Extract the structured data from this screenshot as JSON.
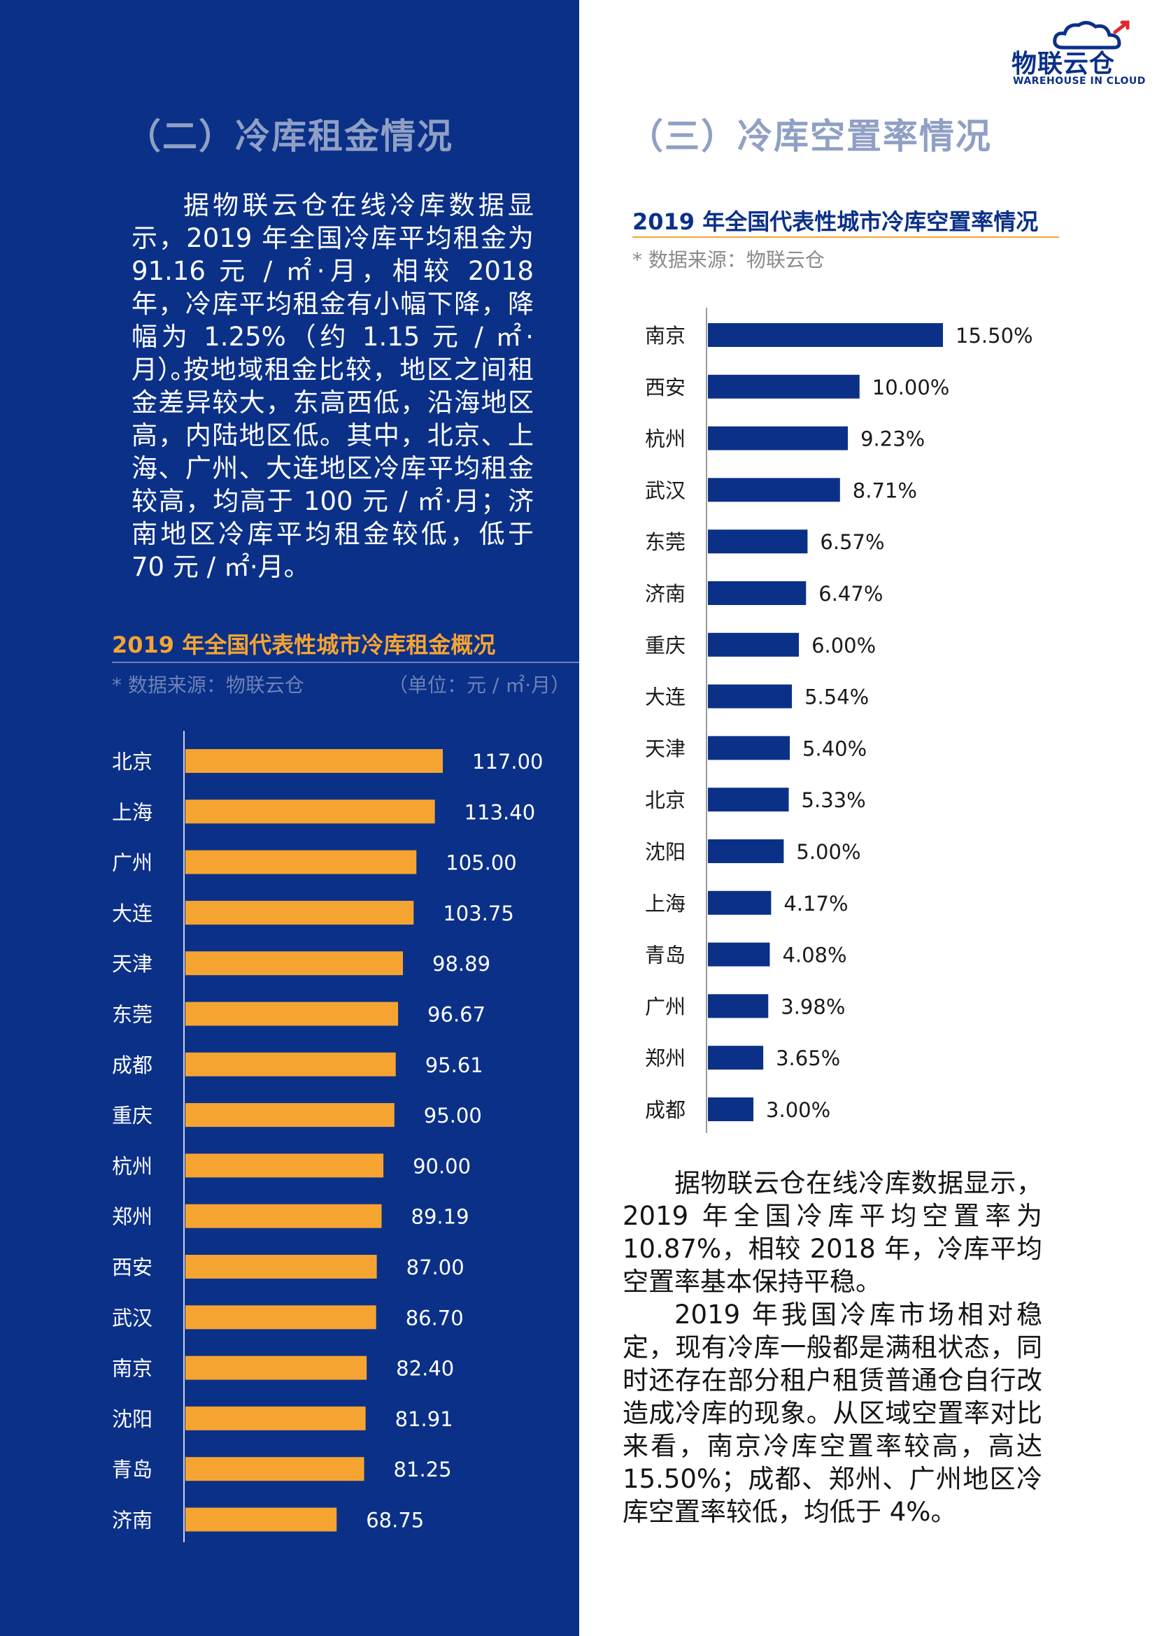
{
  "logo": {
    "name_cn": "物联云仓",
    "name_en": "WAREHOUSE IN CLOUD",
    "icon": "cloud-warehouse-logo-icon",
    "color": "#0b3088",
    "accent": "#e0282e"
  },
  "left": {
    "section_title": "（二）冷库租金情况",
    "paragraphs": [
      "据物联云仓在线冷库数据显示，2019 年全国冷库平均租金为 91.16 元 / ㎡·月，相较 2018 年，冷库平均租金有小幅下降，降幅为 1.25%（约 1.15 元 / ㎡·月）。",
      "按地域租金比较，地区之间租金差异较大，东高西低，沿海地区高，内陆地区低。其中，北京、上海、广州、大连地区冷库平均租金较高，均高于 100 元 / ㎡·月；济南地区冷库平均租金较低，低于 70 元 / ㎡·月。"
    ],
    "chart_title": "2019 年全国代表性城市冷库租金概况",
    "source_note": "* 数据来源：物联云仓",
    "unit_note": "（单位：元 / ㎡·月）"
  },
  "right": {
    "section_title": "（三）冷库空置率情况",
    "chart_title": "2019 年全国代表性城市冷库空置率情况",
    "source_note": "* 数据来源：物联云仓",
    "paragraphs": [
      "据物联云仓在线冷库数据显示，2019 年全国冷库平均空置率为 10.87%，相较 2018 年，冷库平均空置率基本保持平稳。",
      "2019 年我国冷库市场相对稳定，现有冷库一般都是满租状态，同时还存在部分租户租赁普通仓自行改造成冷库的现象。从区域空置率对比来看，南京冷库空置率较高，高达 15.50%；成都、郑州、广州地区冷库空置率较低，均低于 4%。"
    ]
  },
  "colors": {
    "navy": "#0b3088",
    "orange": "#f5a431",
    "section_title": "#8fa0c4",
    "muted_note": "#6d82b5",
    "gray_note": "#8a8a8a"
  },
  "chart_data": [
    {
      "type": "bar",
      "orientation": "horizontal",
      "title": "2019 年全国代表性城市冷库租金概况",
      "unit": "（单位：元 / ㎡·月）",
      "categories": [
        "北京",
        "上海",
        "广州",
        "大连",
        "天津",
        "东莞",
        "成都",
        "重庆",
        "杭州",
        "郑州",
        "西安",
        "武汉",
        "南京",
        "沈阳",
        "青岛",
        "济南"
      ],
      "values": [
        117.0,
        113.4,
        105.0,
        103.75,
        98.89,
        96.67,
        95.61,
        95.0,
        90.0,
        89.19,
        87.0,
        86.7,
        82.4,
        81.91,
        81.25,
        68.75
      ],
      "labels": [
        "117.00",
        "113.40",
        "105.00",
        "103.75",
        "98.89",
        "96.67",
        "95.61",
        "95.00",
        "90.00",
        "89.19",
        "87.00",
        "86.70",
        "82.40",
        "81.91",
        "81.25",
        "68.75"
      ],
      "bar_color": "#f5a431",
      "xlim": [
        0,
        117
      ],
      "grid": false,
      "legend": "none"
    },
    {
      "type": "bar",
      "orientation": "horizontal",
      "title": "2019 年全国代表性城市冷库空置率情况",
      "categories": [
        "南京",
        "西安",
        "杭州",
        "武汉",
        "东莞",
        "济南",
        "重庆",
        "大连",
        "天津",
        "北京",
        "沈阳",
        "上海",
        "青岛",
        "广州",
        "郑州",
        "成都"
      ],
      "values": [
        15.5,
        10.0,
        9.23,
        8.71,
        6.57,
        6.47,
        6.0,
        5.54,
        5.4,
        5.33,
        5.0,
        4.17,
        4.08,
        3.98,
        3.65,
        3.0
      ],
      "labels": [
        "15.50%",
        "10.00%",
        "9.23%",
        "8.71%",
        "6.57%",
        "6.47%",
        "6.00%",
        "5.54%",
        "5.40%",
        "5.33%",
        "5.00%",
        "4.17%",
        "4.08%",
        "3.98%",
        "3.65%",
        "3.00%"
      ],
      "bar_color": "#0b3088",
      "xlim": [
        0,
        15.5
      ],
      "grid": false,
      "legend": "none"
    }
  ]
}
